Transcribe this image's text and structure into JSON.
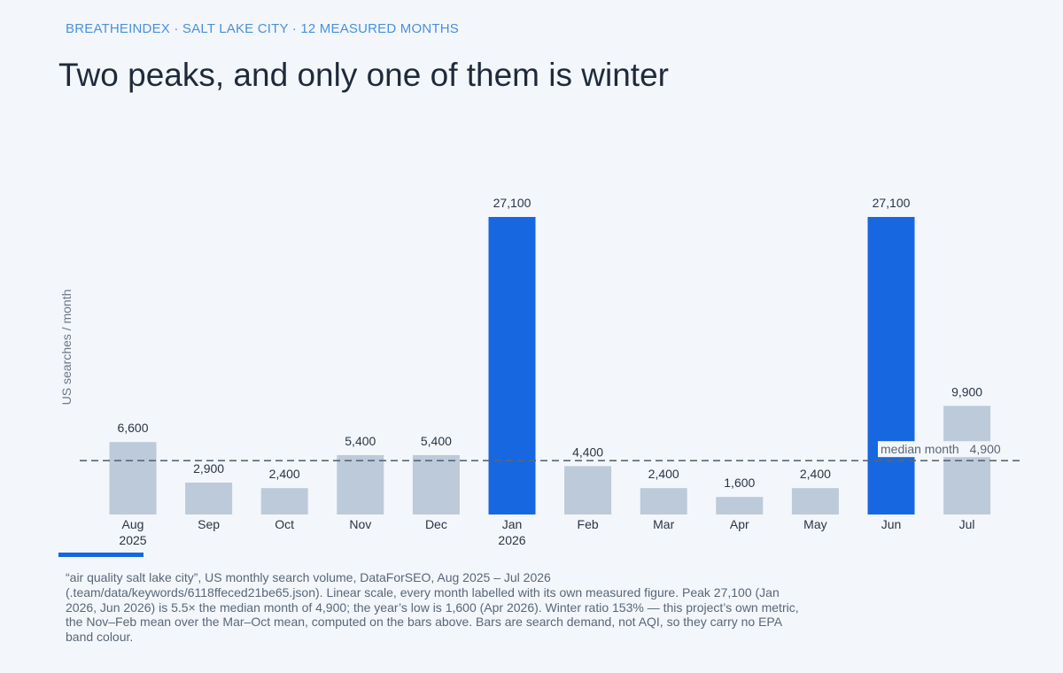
{
  "header": {
    "kicker": "BREATHEINDEX · SALT LAKE CITY · 12 MEASURED MONTHS",
    "headline": "Two peaks, and only one of them is winter"
  },
  "colors": {
    "highlight": "#1767e0",
    "base": "#bccad9",
    "median_line": "#5a6677"
  },
  "chart_data": {
    "type": "bar",
    "categories": [
      "Aug 2025",
      "Sep",
      "Oct",
      "Nov",
      "Dec",
      "Jan 2026",
      "Feb",
      "Mar",
      "Apr",
      "May",
      "Jun",
      "Jul"
    ],
    "category_lines": [
      [
        "Aug",
        "2025"
      ],
      [
        "Sep"
      ],
      [
        "Oct"
      ],
      [
        "Nov"
      ],
      [
        "Dec"
      ],
      [
        "Jan",
        "2026"
      ],
      [
        "Feb"
      ],
      [
        "Mar"
      ],
      [
        "Apr"
      ],
      [
        "May"
      ],
      [
        "Jun"
      ],
      [
        "Jul"
      ]
    ],
    "values": [
      6600,
      2900,
      2400,
      5400,
      5400,
      27100,
      4400,
      2400,
      1600,
      2400,
      27100,
      9900
    ],
    "value_labels": [
      "6,600",
      "2,900",
      "2,400",
      "5,400",
      "5,400",
      "27,100",
      "4,400",
      "2,400",
      "1,600",
      "2,400",
      "27,100",
      "9,900"
    ],
    "highlighted": [
      false,
      false,
      false,
      false,
      false,
      true,
      false,
      false,
      false,
      false,
      true,
      false
    ],
    "ylabel": "US searches / month",
    "ylim": [
      0,
      27100
    ],
    "grid": false,
    "reference_line": {
      "value": 4900,
      "label": "median month",
      "value_label": "4,900",
      "style": "dashed"
    }
  },
  "caption": "“air quality salt lake city”, US monthly search volume, DataForSEO, Aug 2025 – Jul 2026 (.team/data/keywords/6118ffeced21be65.json). Linear scale, every month labelled with its own measured figure. Peak 27,100 (Jan 2026, Jun 2026) is 5.5× the median month of 4,900; the year’s low is 1,600 (Apr 2026). Winter ratio 153% — this project’s own metric, the Nov–Feb mean over the Mar–Oct mean, computed on the bars above. Bars are search demand, not AQI, so they carry no EPA band colour."
}
